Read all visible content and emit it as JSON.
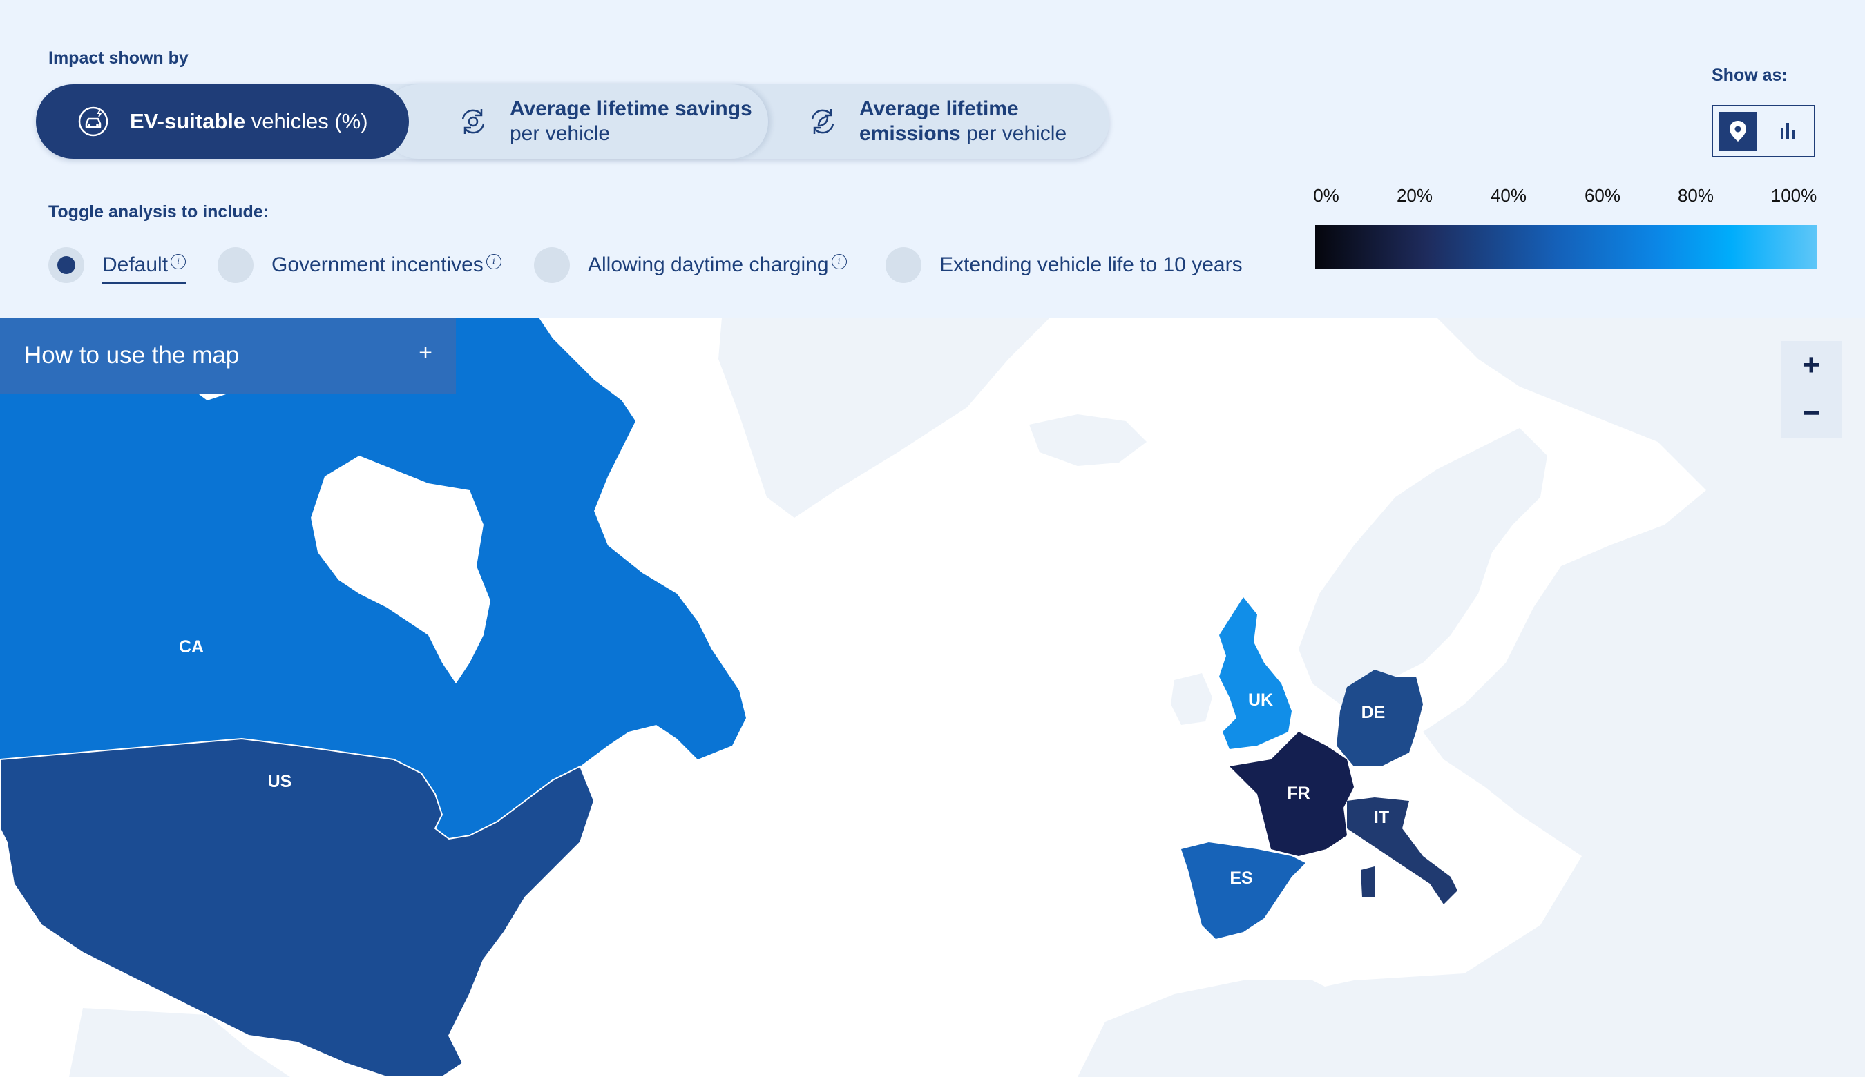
{
  "header": {
    "impact_label": "Impact shown by",
    "toggle_label": "Toggle analysis to include:",
    "show_as_label": "Show as:"
  },
  "impact_options": [
    {
      "bold": "EV-suitable",
      "rest": " vehicles (%)",
      "icon": "car-charging-icon",
      "selected": true
    },
    {
      "bold": "Average lifetime savings",
      "rest": " per vehicle",
      "icon": "savings-cycle-icon",
      "selected": false
    },
    {
      "bold": "Average lifetime emissions",
      "rest": " per vehicle",
      "icon": "emissions-cycle-icon",
      "selected": false
    }
  ],
  "toggles": [
    {
      "label": "Default",
      "selected": true,
      "info": true
    },
    {
      "label": "Government incentives",
      "selected": false,
      "info": true
    },
    {
      "label": "Allowing daytime charging",
      "selected": false,
      "info": true
    },
    {
      "label": "Extending vehicle life to 10 years",
      "selected": false,
      "info": false
    }
  ],
  "show_as": {
    "selected": "map",
    "options": [
      "map-pin-icon",
      "bar-chart-icon"
    ]
  },
  "legend": {
    "ticks": [
      "0%",
      "20%",
      "40%",
      "60%",
      "80%",
      "100%"
    ],
    "gradient": [
      "#05060d",
      "#1e2b5c",
      "#1560b8",
      "#0b86e6",
      "#00adfb",
      "#5ec6f8"
    ]
  },
  "howto": {
    "title": "How to use the map",
    "toggle": "+"
  },
  "zoom": {
    "in": "+",
    "out": "−"
  },
  "countries": [
    {
      "code": "CA",
      "color": "#0a74d4"
    },
    {
      "code": "US",
      "color": "#1b4c93"
    },
    {
      "code": "UK",
      "color": "#118ee8"
    },
    {
      "code": "DE",
      "color": "#1e4b8c"
    },
    {
      "code": "FR",
      "color": "#141f50"
    },
    {
      "code": "IT",
      "color": "#203a70"
    },
    {
      "code": "ES",
      "color": "#1763b8"
    }
  ],
  "colors": {
    "panel": "#ebf3fd",
    "land": "#eef3f9",
    "accent": "#1f3d78"
  }
}
